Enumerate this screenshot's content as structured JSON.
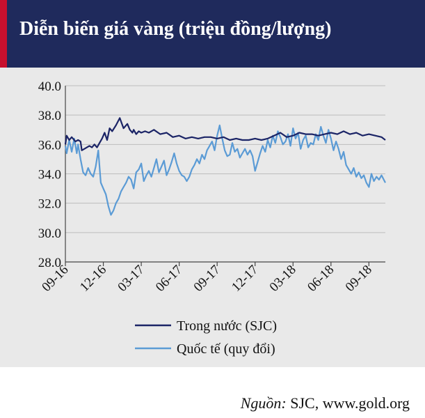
{
  "header": {
    "title": "Diễn biến giá vàng (triệu đồng/lượng)",
    "accent_color": "#c8102e",
    "background_color": "#1f2a5c"
  },
  "source": {
    "label": "Nguồn:",
    "text": " SJC, www.gold.org"
  },
  "chart_data": {
    "type": "line",
    "title": "Diễn biến giá vàng (triệu đồng/lượng)",
    "xlabel": "",
    "ylabel": "",
    "ylim": [
      28.0,
      40.0
    ],
    "y_ticks": [
      "28.0",
      "30.0",
      "32.0",
      "34.0",
      "36.0",
      "38.0",
      "40.0"
    ],
    "x_tick_labels": [
      "09-16",
      "12-16",
      "03-17",
      "06-17",
      "09-17",
      "12-17",
      "03-18",
      "06-18",
      "09-18"
    ],
    "x_tick_index": [
      0,
      3,
      6,
      9,
      12,
      15,
      18,
      21,
      24
    ],
    "x_range": [
      0,
      25.3
    ],
    "grid": "horizontal",
    "legend_position": "bottom",
    "series": [
      {
        "name": "Trong nước (SJC)",
        "color": "#1b2466",
        "x": [
          0,
          0.1,
          0.3,
          0.5,
          0.8,
          1.0,
          1.2,
          1.3,
          1.5,
          1.7,
          1.9,
          2.1,
          2.3,
          2.5,
          2.7,
          2.9,
          3.1,
          3.3,
          3.5,
          3.7,
          4.0,
          4.3,
          4.6,
          4.9,
          5.1,
          5.3,
          5.4,
          5.6,
          5.8,
          6.0,
          6.3,
          6.6,
          7.0,
          7.5,
          8.0,
          8.5,
          9.0,
          9.5,
          10.0,
          10.5,
          11.0,
          11.5,
          12.0,
          12.5,
          13.0,
          13.5,
          14.0,
          14.5,
          15.0,
          15.5,
          16.0,
          16.5,
          17.0,
          17.5,
          18.0,
          18.5,
          19.0,
          19.5,
          20.0,
          20.5,
          21.0,
          21.5,
          22.0,
          22.5,
          23.0,
          23.5,
          24.0,
          24.5,
          25.0,
          25.3
        ],
        "values": [
          36.0,
          36.6,
          36.3,
          36.5,
          36.2,
          36.3,
          36.2,
          35.6,
          35.7,
          35.8,
          35.9,
          35.8,
          36.0,
          35.8,
          36.1,
          36.4,
          36.8,
          36.3,
          37.1,
          36.9,
          37.3,
          37.8,
          37.1,
          37.4,
          37.0,
          36.8,
          37.0,
          36.7,
          36.9,
          36.8,
          36.9,
          36.8,
          37.0,
          36.7,
          36.8,
          36.5,
          36.6,
          36.4,
          36.5,
          36.4,
          36.5,
          36.5,
          36.4,
          36.5,
          36.3,
          36.4,
          36.3,
          36.3,
          36.4,
          36.3,
          36.4,
          36.6,
          36.8,
          36.5,
          36.6,
          36.8,
          36.7,
          36.7,
          36.6,
          36.7,
          36.8,
          36.7,
          36.9,
          36.7,
          36.8,
          36.6,
          36.7,
          36.6,
          36.5,
          36.3
        ]
      },
      {
        "name": "Quốc tế (quy đổi)",
        "color": "#5b9bd5",
        "x": [
          0,
          0.1,
          0.3,
          0.5,
          0.7,
          0.9,
          1.0,
          1.2,
          1.4,
          1.6,
          1.8,
          2.0,
          2.2,
          2.4,
          2.6,
          2.8,
          3.0,
          3.2,
          3.4,
          3.6,
          3.8,
          4.0,
          4.2,
          4.4,
          4.6,
          4.8,
          5.0,
          5.2,
          5.4,
          5.6,
          5.8,
          6.0,
          6.2,
          6.4,
          6.6,
          6.8,
          7.0,
          7.2,
          7.4,
          7.6,
          7.8,
          8.0,
          8.2,
          8.4,
          8.6,
          8.8,
          9.0,
          9.2,
          9.4,
          9.6,
          9.8,
          10.0,
          10.2,
          10.4,
          10.6,
          10.8,
          11.0,
          11.2,
          11.4,
          11.6,
          11.8,
          12.0,
          12.2,
          12.4,
          12.6,
          12.8,
          13.0,
          13.2,
          13.4,
          13.6,
          13.8,
          14.0,
          14.2,
          14.4,
          14.6,
          14.8,
          15.0,
          15.2,
          15.4,
          15.6,
          15.8,
          16.0,
          16.2,
          16.4,
          16.6,
          16.8,
          17.0,
          17.2,
          17.4,
          17.6,
          17.8,
          18.0,
          18.2,
          18.4,
          18.6,
          18.8,
          19.0,
          19.2,
          19.4,
          19.6,
          19.8,
          20.0,
          20.2,
          20.4,
          20.6,
          20.8,
          21.0,
          21.2,
          21.4,
          21.6,
          21.8,
          22.0,
          22.2,
          22.4,
          22.6,
          22.8,
          23.0,
          23.2,
          23.4,
          23.6,
          23.8,
          24.0,
          24.2,
          24.4,
          24.6,
          24.8,
          25.0,
          25.3
        ],
        "values": [
          35.9,
          35.4,
          36.3,
          35.5,
          36.4,
          35.4,
          36.0,
          35.0,
          34.1,
          33.9,
          34.4,
          34.0,
          33.8,
          34.5,
          35.6,
          33.4,
          33.0,
          32.6,
          31.8,
          31.2,
          31.5,
          32.0,
          32.3,
          32.8,
          33.1,
          33.4,
          33.8,
          33.6,
          33.0,
          34.1,
          34.3,
          34.7,
          33.5,
          33.9,
          34.2,
          33.8,
          34.4,
          35.0,
          34.1,
          34.5,
          34.9,
          33.9,
          34.3,
          34.8,
          35.4,
          34.7,
          34.2,
          33.9,
          33.8,
          33.5,
          33.8,
          34.3,
          34.6,
          35.0,
          34.7,
          35.3,
          35.0,
          35.6,
          35.9,
          36.2,
          35.6,
          36.6,
          37.3,
          36.4,
          35.6,
          35.2,
          35.3,
          36.1,
          35.5,
          35.7,
          35.1,
          35.4,
          35.7,
          35.3,
          35.6,
          35.2,
          34.2,
          34.8,
          35.4,
          35.9,
          35.5,
          36.3,
          35.8,
          36.6,
          36.1,
          36.9,
          36.5,
          36.0,
          36.2,
          36.7,
          35.9,
          37.1,
          36.4,
          36.8,
          35.7,
          36.3,
          36.6,
          35.8,
          36.1,
          36.0,
          36.7,
          36.3,
          37.2,
          36.6,
          36.1,
          37.0,
          36.4,
          35.6,
          36.2,
          35.7,
          35.0,
          35.5,
          34.6,
          34.3,
          34.0,
          34.4,
          33.8,
          34.1,
          33.7,
          33.9,
          33.4,
          33.1,
          34.0,
          33.5,
          33.8,
          33.6,
          33.9,
          33.4
        ]
      }
    ]
  }
}
